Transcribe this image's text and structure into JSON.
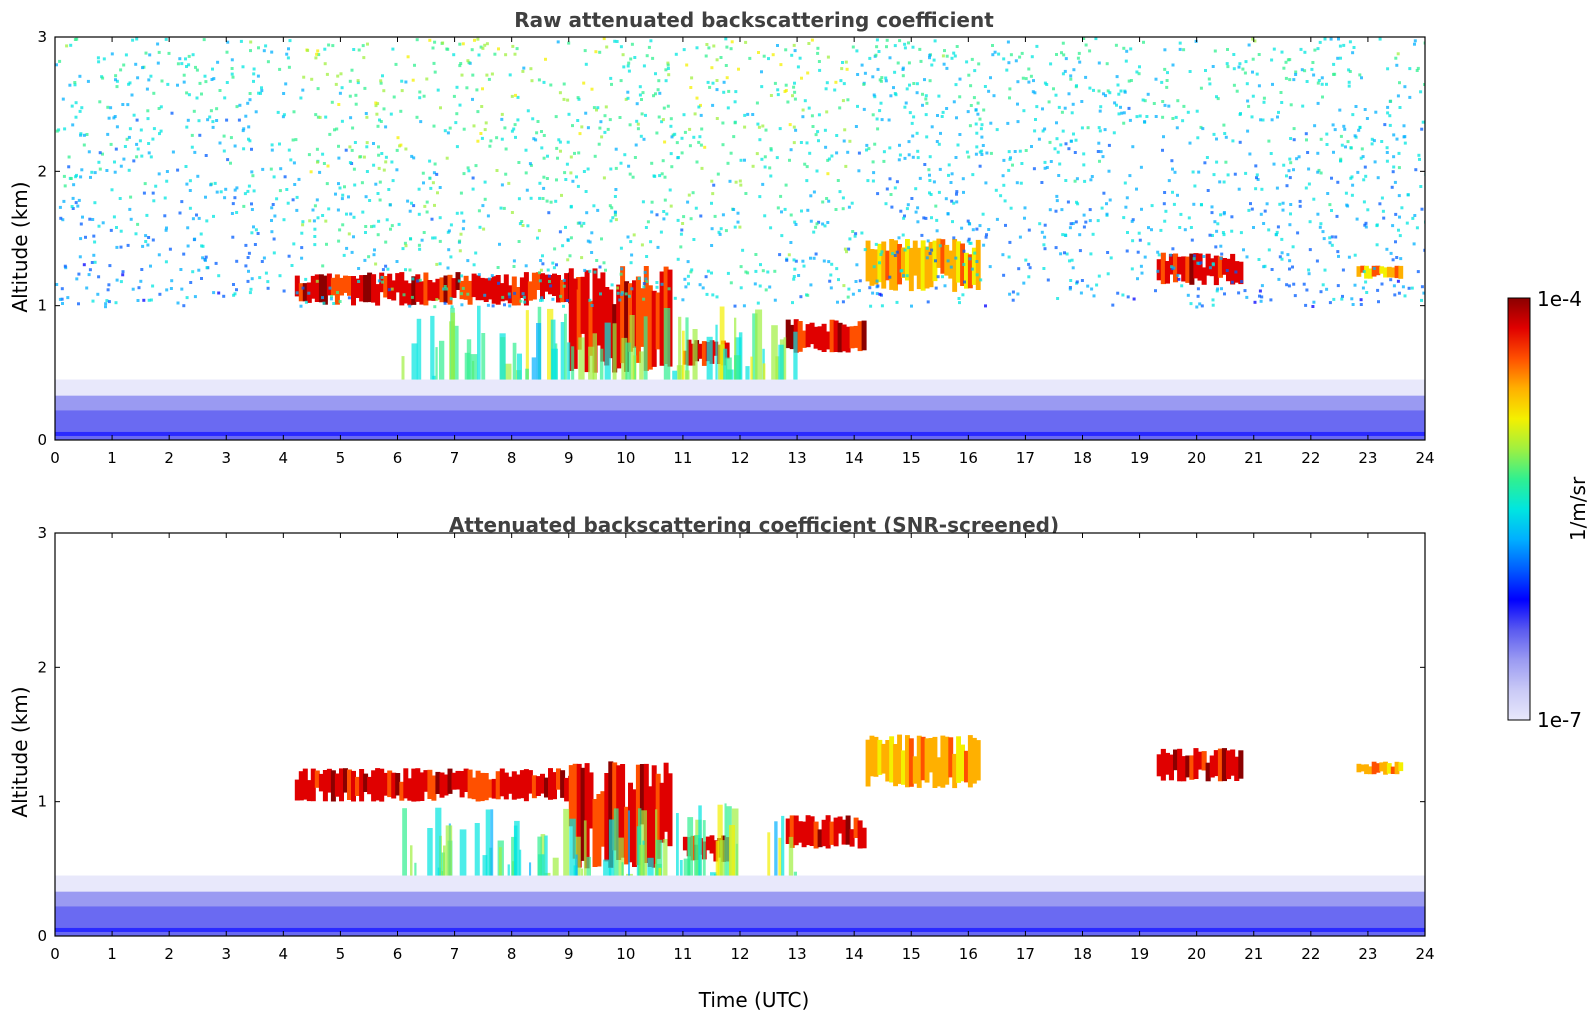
{
  "chart_data": [
    {
      "type": "heatmap",
      "title": "Raw attenuated backscattering coefficient",
      "xlabel": "",
      "ylabel": "Altitude (km)",
      "xlim": [
        0,
        24
      ],
      "ylim": [
        0,
        3
      ],
      "xticks": [
        "0",
        "1",
        "2",
        "3",
        "4",
        "5",
        "6",
        "7",
        "8",
        "9",
        "10",
        "11",
        "12",
        "13",
        "14",
        "15",
        "16",
        "17",
        "18",
        "19",
        "20",
        "21",
        "22",
        "23",
        "24"
      ],
      "yticks": [
        "0",
        "1",
        "2",
        "3"
      ],
      "features": [
        {
          "kind": "dense cloud layer",
          "x_range": [
            4.2,
            9.2
          ],
          "y_range": [
            1.0,
            1.25
          ],
          "level": "1e-4"
        },
        {
          "kind": "cloud",
          "x_range": [
            9.0,
            10.8
          ],
          "y_range": [
            0.5,
            1.3
          ],
          "level": "1e-4"
        },
        {
          "kind": "cloud",
          "x_range": [
            11.0,
            11.8
          ],
          "y_range": [
            0.55,
            0.75
          ],
          "level": "1e-4"
        },
        {
          "kind": "cloud",
          "x_range": [
            12.8,
            14.2
          ],
          "y_range": [
            0.65,
            0.9
          ],
          "level": "1e-4"
        },
        {
          "kind": "precipitation streaks",
          "x_range": [
            6.0,
            13.0
          ],
          "y_range": [
            0.0,
            1.0
          ],
          "level": "mid"
        },
        {
          "kind": "scattered cloud",
          "x_range": [
            14.2,
            16.2
          ],
          "y_range": [
            1.1,
            1.5
          ],
          "level": "high"
        },
        {
          "kind": "cloud",
          "x_range": [
            19.3,
            20.8
          ],
          "y_range": [
            1.15,
            1.4
          ],
          "level": "1e-4"
        },
        {
          "kind": "cloud",
          "x_range": [
            22.8,
            23.6
          ],
          "y_range": [
            1.2,
            1.3
          ],
          "level": "high"
        },
        {
          "kind": "noise / background",
          "x_range": [
            0,
            24
          ],
          "y_range": [
            1.0,
            3.0
          ],
          "level": "noisy"
        },
        {
          "kind": "boundary layer",
          "x_range": [
            0,
            24
          ],
          "y_range": [
            0.0,
            0.4
          ],
          "level": "low"
        }
      ]
    },
    {
      "type": "heatmap",
      "title": "Attenuated backscattering coefficient (SNR-screened)",
      "xlabel": "Time (UTC)",
      "ylabel": "Altitude (km)",
      "xlim": [
        0,
        24
      ],
      "ylim": [
        0,
        3
      ],
      "xticks": [
        "0",
        "1",
        "2",
        "3",
        "4",
        "5",
        "6",
        "7",
        "8",
        "9",
        "10",
        "11",
        "12",
        "13",
        "14",
        "15",
        "16",
        "17",
        "18",
        "19",
        "20",
        "21",
        "22",
        "23",
        "24"
      ],
      "yticks": [
        "0",
        "1",
        "2",
        "3"
      ],
      "features": [
        {
          "kind": "dense cloud layer",
          "x_range": [
            4.2,
            9.2
          ],
          "y_range": [
            1.0,
            1.25
          ],
          "level": "1e-4"
        },
        {
          "kind": "cloud",
          "x_range": [
            9.0,
            10.8
          ],
          "y_range": [
            0.5,
            1.3
          ],
          "level": "1e-4"
        },
        {
          "kind": "cloud",
          "x_range": [
            11.0,
            11.8
          ],
          "y_range": [
            0.55,
            0.75
          ],
          "level": "1e-4"
        },
        {
          "kind": "cloud",
          "x_range": [
            12.8,
            14.2
          ],
          "y_range": [
            0.65,
            0.9
          ],
          "level": "1e-4"
        },
        {
          "kind": "precipitation streaks",
          "x_range": [
            6.0,
            13.0
          ],
          "y_range": [
            0.0,
            1.0
          ],
          "level": "mid"
        },
        {
          "kind": "scattered cloud",
          "x_range": [
            14.2,
            16.2
          ],
          "y_range": [
            1.1,
            1.5
          ],
          "level": "high"
        },
        {
          "kind": "cloud",
          "x_range": [
            19.3,
            20.8
          ],
          "y_range": [
            1.15,
            1.4
          ],
          "level": "1e-4"
        },
        {
          "kind": "cloud",
          "x_range": [
            22.8,
            23.6
          ],
          "y_range": [
            1.2,
            1.3
          ],
          "level": "high"
        },
        {
          "kind": "boundary layer",
          "x_range": [
            0,
            24
          ],
          "y_range": [
            0.0,
            0.4
          ],
          "level": "low"
        }
      ]
    }
  ],
  "colorbar": {
    "label": "1/m/sr",
    "max_label": "1e-4",
    "min_label": "1e-7",
    "colormap": [
      "#e8e8fb",
      "#c9c9f6",
      "#9a9af2",
      "#5a5af0",
      "#0000ff",
      "#005cff",
      "#00b0ff",
      "#00e6e0",
      "#30f090",
      "#a0f040",
      "#f4f000",
      "#ffb000",
      "#ff5000",
      "#e00000",
      "#8b0000"
    ]
  }
}
